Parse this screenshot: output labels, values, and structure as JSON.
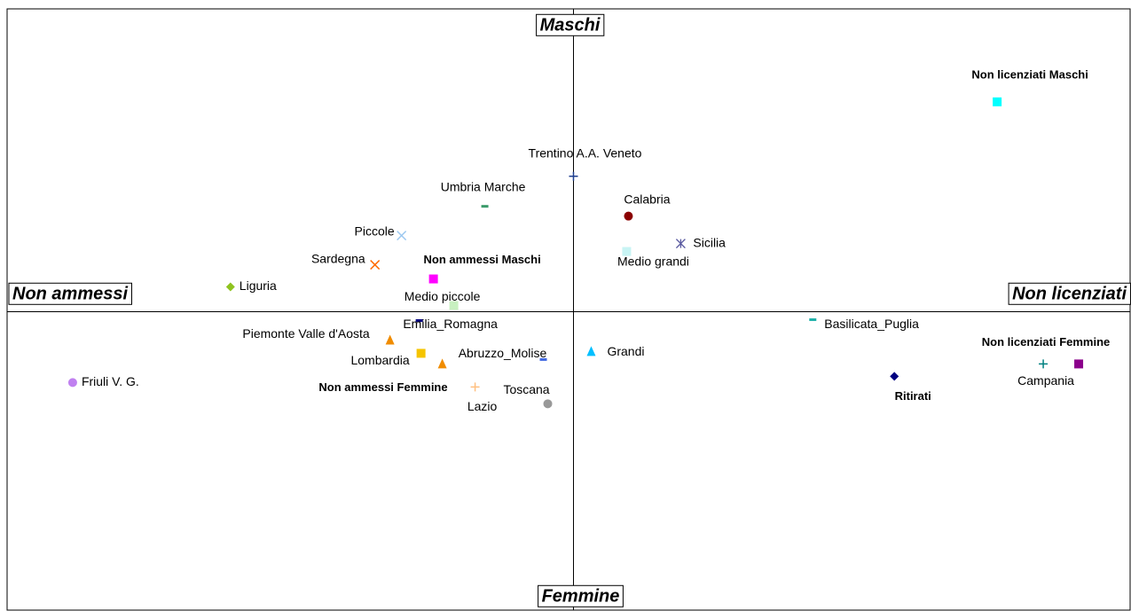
{
  "chart_data": {
    "type": "scatter",
    "axis_labels": {
      "top": "Maschi",
      "bottom": "Femmine",
      "left": "Non ammessi",
      "right": "Non licenziati"
    },
    "xlim": [
      -6.39,
      6.28
    ],
    "ylim": [
      -3.37,
      3.42
    ],
    "points": [
      {
        "name": "Non licenziati Maschi",
        "x": 4.78,
        "y": 2.37,
        "color": "#00ffff",
        "marker": "square",
        "bold": true
      },
      {
        "name": "Trentino A.A. Veneto",
        "x": 0,
        "y": 1.53,
        "color": "#1f3f8f",
        "marker": "plus",
        "bold": false
      },
      {
        "name": "Umbria Marche",
        "x": -1.0,
        "y": 1.19,
        "color": "#3a9a6a",
        "marker": "dash",
        "bold": false
      },
      {
        "name": "Calabria",
        "x": 0.62,
        "y": 1.08,
        "color": "#8b0000",
        "marker": "circle",
        "bold": false
      },
      {
        "name": "Piccole",
        "x": -1.94,
        "y": 0.86,
        "color": "#9cc8f0",
        "marker": "x",
        "bold": false
      },
      {
        "name": "Sicilia",
        "x": 1.21,
        "y": 0.77,
        "color": "#5a5aa0",
        "marker": "asterisk",
        "bold": false
      },
      {
        "name": "Medio grandi",
        "x": 0.6,
        "y": 0.68,
        "color": "#c8f4f4",
        "marker": "square",
        "bold": false
      },
      {
        "name": "Sardegna",
        "x": -2.24,
        "y": 0.53,
        "color": "#ff6a00",
        "marker": "x",
        "bold": false
      },
      {
        "name": "Non ammessi Maschi",
        "x": -1.58,
        "y": 0.37,
        "color": "#ff00ff",
        "marker": "square",
        "bold": true
      },
      {
        "name": "Liguria",
        "x": -3.87,
        "y": 0.28,
        "color": "#8fc31f",
        "marker": "diamond",
        "bold": false
      },
      {
        "name": "Medio piccole",
        "x": -1.35,
        "y": 0.07,
        "color": "#c8f0c0",
        "marker": "square",
        "bold": false
      },
      {
        "name": "Emilia_Romagna",
        "x": -1.74,
        "y": -0.1,
        "color": "#000080",
        "marker": "dash",
        "bold": false
      },
      {
        "name": "Basilicata_Puglia",
        "x": 2.7,
        "y": -0.09,
        "color": "#20b2aa",
        "marker": "dash",
        "bold": false
      },
      {
        "name": "Piemonte Valle d'Aosta",
        "x": -2.07,
        "y": -0.32,
        "color": "#f08c00",
        "marker": "triangle",
        "bold": false
      },
      {
        "name": "Lombardia",
        "x": -1.72,
        "y": -0.47,
        "color": "#f5c400",
        "marker": "square",
        "bold": false
      },
      {
        "name": "Abruzzo_Molise",
        "x": -0.34,
        "y": -0.54,
        "color": "#4169e1",
        "marker": "dash",
        "bold": false
      },
      {
        "name": "Non ammessi Femmine",
        "x": -1.48,
        "y": -0.59,
        "color": "#f08c00",
        "marker": "triangle",
        "bold": true
      },
      {
        "name": "Grandi",
        "x": 0.2,
        "y": -0.45,
        "color": "#00bfff",
        "marker": "triangle",
        "bold": false
      },
      {
        "name": "Toscana",
        "x": -0.29,
        "y": -1.04,
        "color": "#999999",
        "marker": "circle",
        "bold": false
      },
      {
        "name": "Lazio",
        "x": -1.11,
        "y": -0.85,
        "color": "#ffc080",
        "marker": "plus",
        "bold": false
      },
      {
        "name": "Friuli V. G.",
        "x": -5.65,
        "y": -0.8,
        "color": "#c080f0",
        "marker": "circle",
        "bold": false
      },
      {
        "name": "Ritirati",
        "x": 3.62,
        "y": -0.73,
        "color": "#000080",
        "marker": "diamond",
        "bold": true
      },
      {
        "name": "Non licenziati Femmine",
        "x": 5.7,
        "y": -0.59,
        "color": "#8b008b",
        "marker": "square",
        "bold": true
      },
      {
        "name": "Campania",
        "x": 5.3,
        "y": -0.59,
        "color": "#008080",
        "marker": "plus",
        "bold": false
      }
    ]
  }
}
